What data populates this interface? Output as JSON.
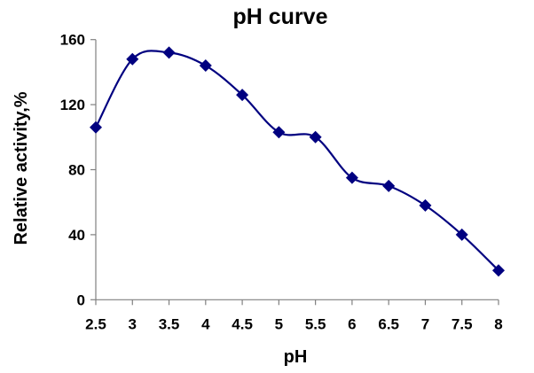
{
  "chart_data": {
    "type": "line",
    "title": "pH curve",
    "xlabel": "pH",
    "ylabel": "Relative activity,%",
    "x": [
      2.5,
      3,
      3.5,
      4,
      4.5,
      5,
      5.5,
      6,
      6.5,
      7,
      7.5,
      8
    ],
    "x_tick_labels": [
      "2.5",
      "3",
      "3.5",
      "4",
      "4.5",
      "5",
      "5.5",
      "6",
      "6.5",
      "7",
      "7.5",
      "8"
    ],
    "y_ticks": [
      0,
      40,
      80,
      120,
      160
    ],
    "y_tick_labels": [
      "0",
      "40",
      "80",
      "120",
      "160"
    ],
    "ylim": [
      0,
      160
    ],
    "grid": false,
    "series": [
      {
        "name": "Relative activity",
        "values": [
          106,
          148,
          152,
          144,
          126,
          103,
          100,
          75,
          70,
          58,
          40,
          18
        ],
        "color": "#000080",
        "marker": "diamond",
        "smooth": true
      }
    ]
  }
}
